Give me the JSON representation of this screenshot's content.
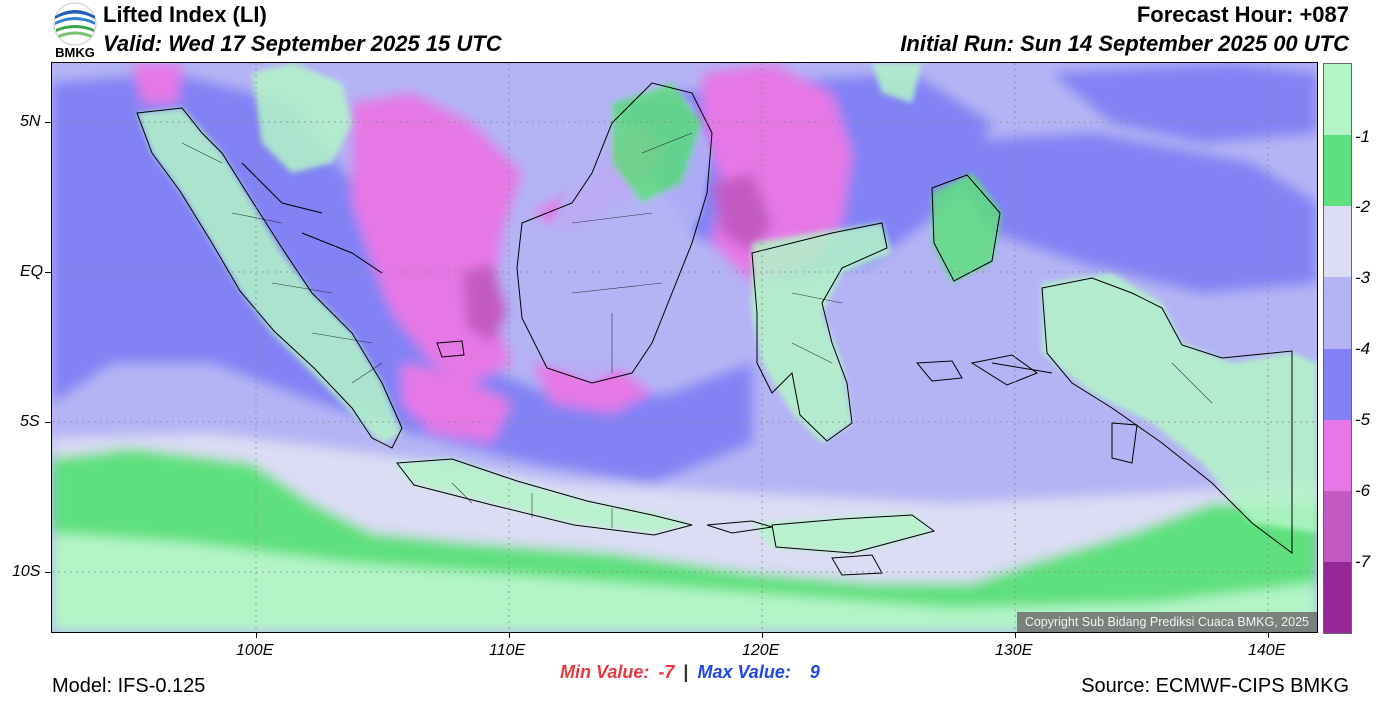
{
  "header": {
    "logo_text": "BMKG",
    "title": "Lifted Index (LI)",
    "valid": "Valid: Wed 17 September 2025 15 UTC",
    "forecast_hour": "Forecast Hour: +087",
    "initial_run": "Initial Run: Sun 14 September 2025 00 UTC"
  },
  "map": {
    "lat_ticks": [
      "5N",
      "EQ",
      "5S",
      "10S"
    ],
    "lon_ticks": [
      "100E",
      "110E",
      "120E",
      "130E",
      "140E"
    ],
    "copyright": "Copyright Sub Bidang Prediksi Cuaca BMKG, 2025"
  },
  "colorbar": {
    "labels": [
      "-1",
      "-2",
      "-3",
      "-4",
      "-5",
      "-6",
      "-7"
    ],
    "colors": [
      "#b4f5c8",
      "#5fe07e",
      "#dcdcf5",
      "#b4b4f5",
      "#8282f5",
      "#e678e6",
      "#c35ac3",
      "#962896"
    ]
  },
  "stats": {
    "min_label": "Min Value:",
    "min_value": "-7",
    "separator": "|",
    "max_label": "Max Value:",
    "max_value": "9"
  },
  "footer": {
    "model": "Model: IFS-0.125",
    "source": "Source: ECMWF-CIPS BMKG"
  }
}
